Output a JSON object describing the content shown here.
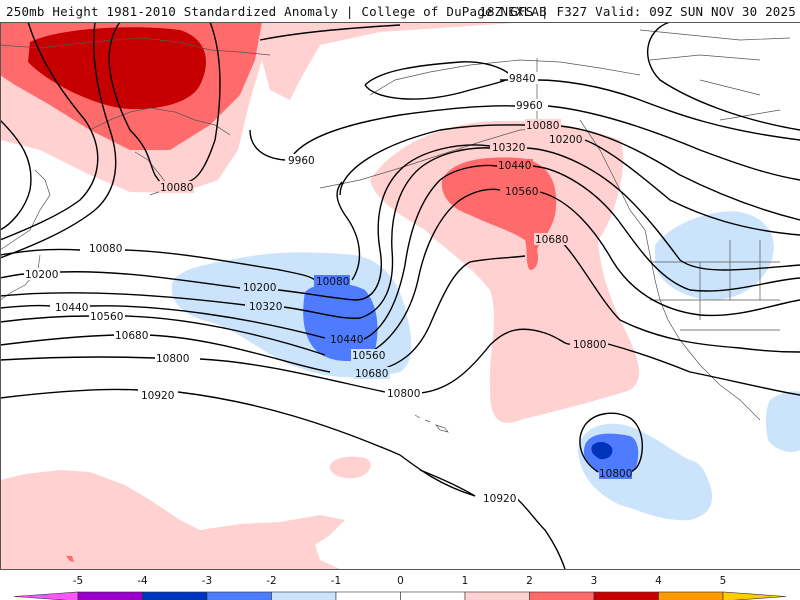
{
  "header": {
    "title_left": "250mb Height 1981-2010 Standardized Anomaly | College of DuPage NEXLAB",
    "title_right": "18Z GFS | F327 Valid: 09Z SUN NOV 30 2025"
  },
  "map": {
    "field": "250mb geopotential height (m) with standardized anomaly shading",
    "contour_interval": 120,
    "contour_labels": [
      {
        "value": "9840",
        "region": "north-central"
      },
      {
        "value": "9960",
        "region": "north-central"
      },
      {
        "value": "9960",
        "region": "west-north"
      },
      {
        "value": "10080",
        "region": "northwest"
      },
      {
        "value": "10080",
        "region": "west"
      },
      {
        "value": "10080",
        "region": "central-low"
      },
      {
        "value": "10080",
        "region": "gulf-of-alaska"
      },
      {
        "value": "10200",
        "region": "west"
      },
      {
        "value": "10200",
        "region": "central-low"
      },
      {
        "value": "10200",
        "region": "gulf-of-alaska"
      },
      {
        "value": "10320",
        "region": "central-low"
      },
      {
        "value": "10320",
        "region": "gulf-of-alaska"
      },
      {
        "value": "10440",
        "region": "west"
      },
      {
        "value": "10440",
        "region": "central-low"
      },
      {
        "value": "10440",
        "region": "gulf-of-alaska"
      },
      {
        "value": "10560",
        "region": "west"
      },
      {
        "value": "10560",
        "region": "central-low"
      },
      {
        "value": "10560",
        "region": "ridge"
      },
      {
        "value": "10680",
        "region": "west"
      },
      {
        "value": "10680",
        "region": "central-low"
      },
      {
        "value": "10680",
        "region": "ridge"
      },
      {
        "value": "10800",
        "region": "west"
      },
      {
        "value": "10800",
        "region": "central"
      },
      {
        "value": "10800",
        "region": "east-pacific"
      },
      {
        "value": "10800",
        "region": "cutoff-low"
      },
      {
        "value": "10920",
        "region": "west"
      },
      {
        "value": "10920",
        "region": "south"
      }
    ]
  },
  "colorbar": {
    "ticks": [
      "-5",
      "-4",
      "-3",
      "-2",
      "-1",
      "0",
      "1",
      "2",
      "3",
      "4",
      "5"
    ],
    "bins": [
      {
        "range": "< -5",
        "color": "#ff55ff"
      },
      {
        "range": "-5 to -4",
        "color": "#9900cc"
      },
      {
        "range": "-4 to -3",
        "color": "#0033bb"
      },
      {
        "range": "-3 to -2",
        "color": "#4f7bff"
      },
      {
        "range": "-2 to -1",
        "color": "#cce4fb"
      },
      {
        "range": "-1 to 0",
        "color": "#ffffff"
      },
      {
        "range": "0 to 1",
        "color": "#ffffff"
      },
      {
        "range": "1 to 2",
        "color": "#ffd1d1"
      },
      {
        "range": "2 to 3",
        "color": "#ff6b6b"
      },
      {
        "range": "3 to 4",
        "color": "#c60000"
      },
      {
        "range": "4 to 5",
        "color": "#ff9900"
      },
      {
        "range": "> 5",
        "color": "#ffcc00"
      }
    ]
  },
  "colors": {
    "anom_pos1": "#ffd1d1",
    "anom_pos2": "#ff6b6b",
    "anom_pos3": "#c60000",
    "anom_neg1": "#cce4fb",
    "anom_neg2": "#4f7bff",
    "anom_neg3": "#0033bb",
    "contour": "#000000",
    "coastline": "#555555"
  }
}
